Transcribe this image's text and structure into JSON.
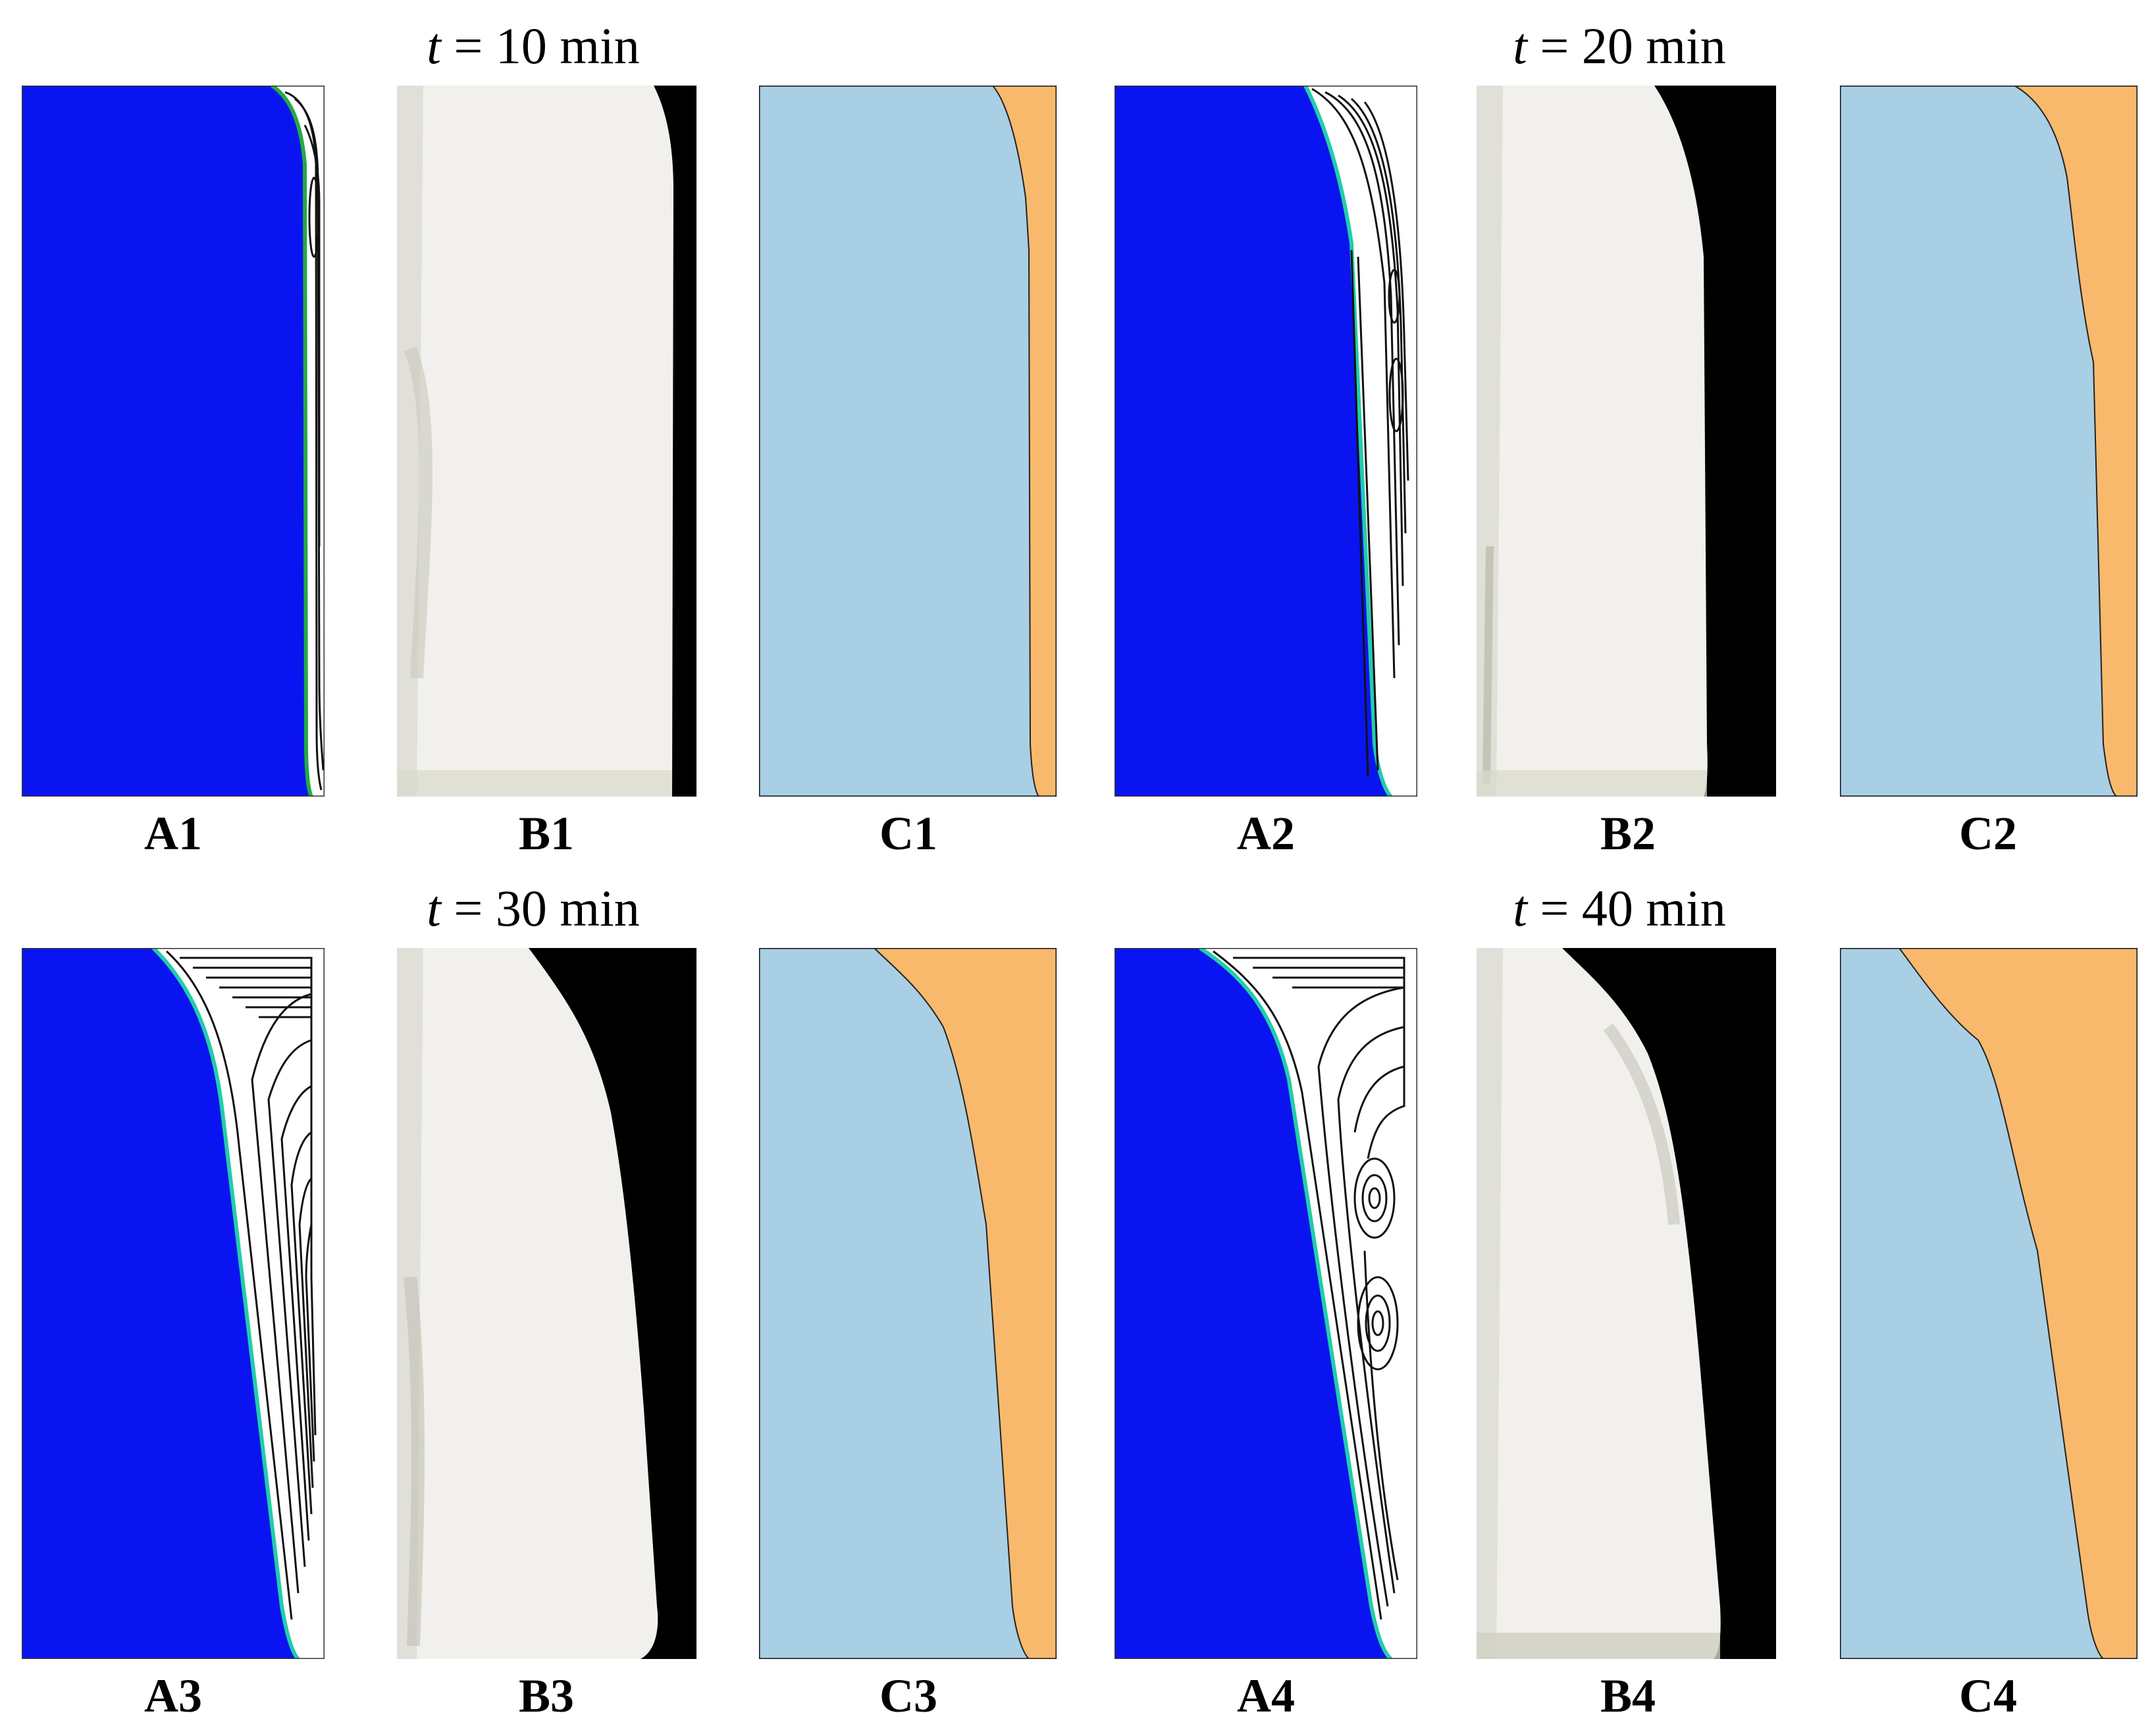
{
  "colors": {
    "solid_blue": "#0a14f0",
    "liquid_light_blue": "#a8cfe4",
    "melt_orange": "#f9b96c",
    "dark_background": "#000000",
    "contour_black": "#111111"
  },
  "time_labels": [
    {
      "var": "t",
      "text": " = 10 min"
    },
    {
      "var": "t",
      "text": " = 20 min"
    },
    {
      "var": "t",
      "text": " = 30 min"
    },
    {
      "var": "t",
      "text": " = 40 min"
    }
  ],
  "panels": {
    "row1": [
      "A1",
      "B1",
      "C1",
      "A2",
      "B2",
      "C2"
    ],
    "row2": [
      "A3",
      "B3",
      "C3",
      "A4",
      "B4",
      "C4"
    ]
  }
}
